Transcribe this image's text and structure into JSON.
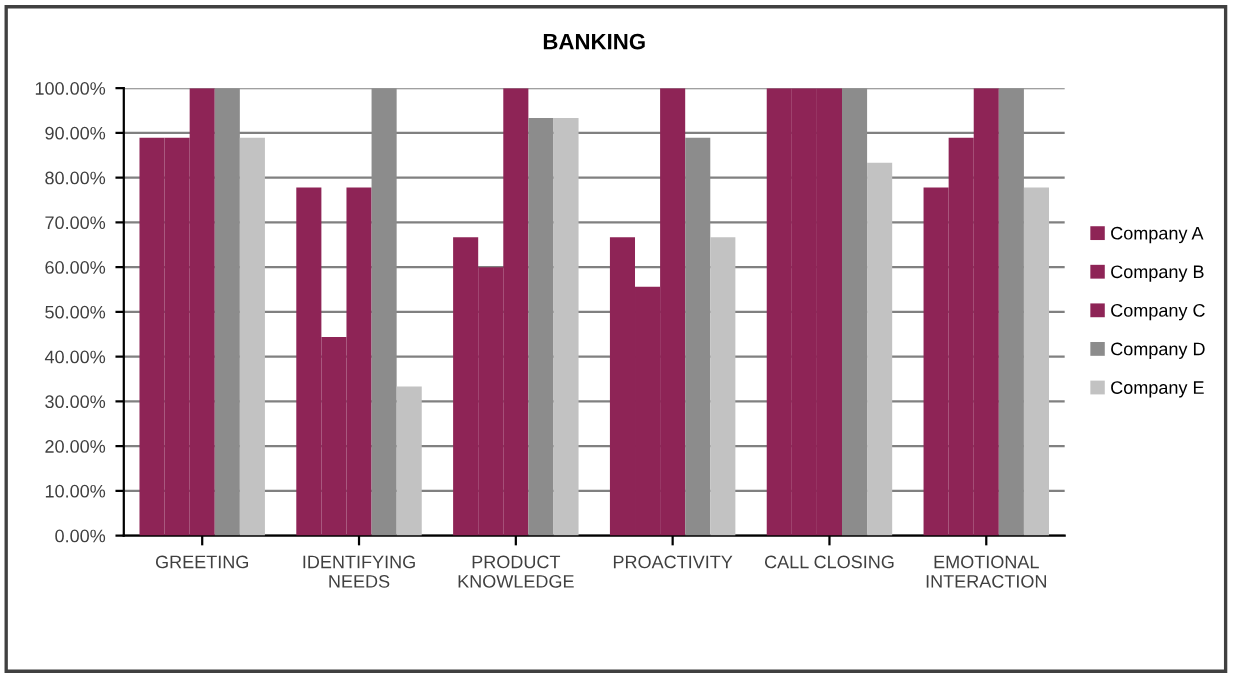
{
  "chart_data": {
    "type": "bar",
    "title": "BANKING",
    "categories": [
      "GREETING",
      "IDENTIFYING\nNEEDS",
      "PRODUCT\nKNOWLEDGE",
      "PROACTIVITY",
      "CALL CLOSING",
      "EMOTIONAL\nINTERACTION"
    ],
    "series": [
      {
        "name": "Company A",
        "color": "#8e2456",
        "values": [
          88.9,
          77.8,
          66.7,
          66.7,
          100,
          77.8
        ]
      },
      {
        "name": "Company B",
        "color": "#8e2456",
        "values": [
          88.9,
          44.4,
          60,
          55.6,
          100,
          88.9
        ]
      },
      {
        "name": "Company C",
        "color": "#8e2456",
        "values": [
          100,
          77.8,
          100,
          100,
          100,
          100
        ]
      },
      {
        "name": "Company D",
        "color": "#8c8c8c",
        "values": [
          100,
          100,
          93.3,
          88.9,
          100,
          100
        ]
      },
      {
        "name": "Company E",
        "color": "#c2c2c2",
        "values": [
          88.9,
          33.3,
          93.3,
          66.7,
          83.3,
          77.8
        ]
      }
    ],
    "ylim": [
      0,
      100
    ],
    "yticks": [
      {
        "value": 0,
        "label": "0.00%"
      },
      {
        "value": 10,
        "label": "10.00%"
      },
      {
        "value": 20,
        "label": "20.00%"
      },
      {
        "value": 30,
        "label": "30.00%"
      },
      {
        "value": 40,
        "label": "40.00%"
      },
      {
        "value": 50,
        "label": "50.00%"
      },
      {
        "value": 60,
        "label": "60.00%"
      },
      {
        "value": 70,
        "label": "70.00%"
      },
      {
        "value": 80,
        "label": "80.00%"
      },
      {
        "value": 90,
        "label": "90.00%"
      },
      {
        "value": 100,
        "label": "100.00%"
      }
    ],
    "grid": "y",
    "legend": "right"
  }
}
